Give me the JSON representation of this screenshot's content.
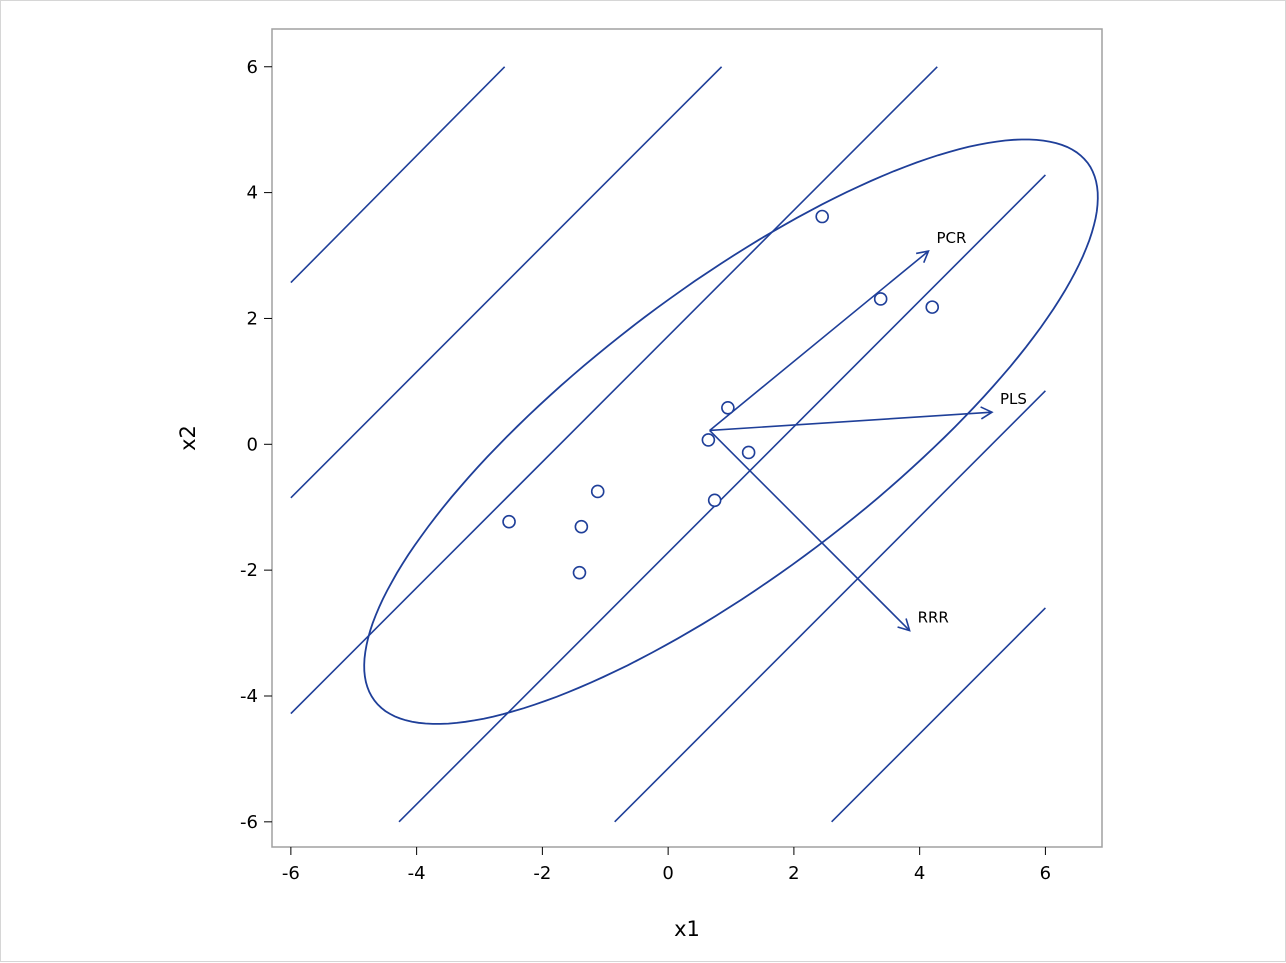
{
  "chart_data": {
    "type": "scatter",
    "title": "",
    "xlabel": "x1",
    "ylabel": "x2",
    "xlim": [
      -6.3,
      6.9
    ],
    "ylim": [
      -6.4,
      6.6
    ],
    "xticks": [
      -6,
      -4,
      -2,
      0,
      2,
      4,
      6
    ],
    "yticks": [
      -6,
      -4,
      -2,
      0,
      2,
      4,
      6
    ],
    "grid": false,
    "legend": "none",
    "color": "#1f3f99",
    "points": [
      {
        "x": 2.45,
        "y": 3.62
      },
      {
        "x": 3.38,
        "y": 2.31
      },
      {
        "x": 4.2,
        "y": 2.18
      },
      {
        "x": 0.95,
        "y": 0.58
      },
      {
        "x": 0.64,
        "y": 0.07
      },
      {
        "x": 1.28,
        "y": -0.13
      },
      {
        "x": -1.12,
        "y": -0.75
      },
      {
        "x": 0.74,
        "y": -0.89
      },
      {
        "x": -2.53,
        "y": -1.23
      },
      {
        "x": -1.38,
        "y": -1.31
      },
      {
        "x": -1.41,
        "y": -2.04
      }
    ],
    "contour_lines": [
      {
        "x": [
          -6,
          -2.6
        ],
        "y": [
          2.57,
          6
        ]
      },
      {
        "x": [
          -6,
          0.85
        ],
        "y": [
          -0.85,
          6
        ]
      },
      {
        "x": [
          -6,
          4.28
        ],
        "y": [
          -4.28,
          6
        ]
      },
      {
        "x": [
          -4.28,
          6
        ],
        "y": [
          -6,
          4.28
        ]
      },
      {
        "x": [
          -0.85,
          6
        ],
        "y": [
          -6,
          0.85
        ]
      },
      {
        "x": [
          2.6,
          6
        ],
        "y": [
          -6,
          -2.6
        ]
      }
    ],
    "ellipse": {
      "center": [
        1.0,
        0.2
      ],
      "semi_major": 7.1,
      "semi_minor": 2.28,
      "angle_deg": 37
    },
    "arrows": [
      {
        "label": "PCR",
        "from": [
          0.66,
          0.22
        ],
        "to": [
          4.14,
          3.07
        ]
      },
      {
        "label": "PLS",
        "from": [
          0.66,
          0.22
        ],
        "to": [
          5.15,
          0.51
        ]
      },
      {
        "label": "RRR",
        "from": [
          0.66,
          0.22
        ],
        "to": [
          3.84,
          -2.96
        ]
      }
    ]
  }
}
